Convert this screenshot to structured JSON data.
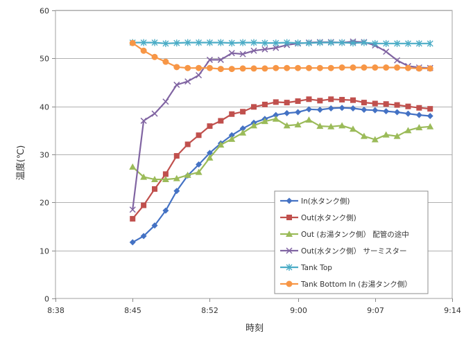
{
  "chart_data": {
    "type": "line",
    "title": "",
    "xlabel": "時刻",
    "ylabel": "温度(℃)",
    "ylim": [
      0,
      60
    ],
    "yticks": [
      0,
      10,
      20,
      30,
      40,
      50,
      60
    ],
    "xticks": [
      "8:38",
      "8:45",
      "8:52",
      "9:00",
      "9:07",
      "9:14"
    ],
    "xlim": [
      "8:38",
      "9:14"
    ],
    "grid": true,
    "legend": "inside-bottom-right",
    "x": [
      "8:45",
      "8:46",
      "8:47",
      "8:48",
      "8:49",
      "8:50",
      "8:51",
      "8:52",
      "8:53",
      "8:54",
      "8:55",
      "8:56",
      "8:57",
      "8:58",
      "8:59",
      "9:00",
      "9:01",
      "9:02",
      "9:03",
      "9:04",
      "9:05",
      "9:06",
      "9:07",
      "9:08",
      "9:09",
      "9:10",
      "9:11",
      "9:12"
    ],
    "series": [
      {
        "name": "In(水タンク側)",
        "color": "#4472C4",
        "marker": "diamond",
        "values": [
          11.7,
          13.0,
          15.2,
          18.3,
          22.4,
          25.6,
          27.9,
          30.3,
          32.3,
          34.0,
          35.4,
          36.6,
          37.4,
          38.2,
          38.6,
          38.8,
          39.4,
          39.3,
          39.6,
          39.7,
          39.6,
          39.3,
          39.2,
          39.0,
          38.8,
          38.5,
          38.2,
          38.0
        ]
      },
      {
        "name": "Out(水タンク側)",
        "color": "#C0504D",
        "marker": "square",
        "values": [
          16.6,
          19.4,
          22.8,
          25.9,
          29.7,
          32.1,
          34.0,
          35.9,
          37.0,
          38.4,
          38.9,
          39.9,
          40.4,
          40.9,
          40.8,
          41.1,
          41.5,
          41.2,
          41.5,
          41.4,
          41.3,
          40.8,
          40.6,
          40.5,
          40.3,
          40.0,
          39.7,
          39.5
        ]
      },
      {
        "name": "Out (お湯タンク側） 配管の途中",
        "color": "#9BBB59",
        "marker": "triangle",
        "values": [
          27.4,
          25.3,
          24.8,
          24.8,
          25.0,
          25.7,
          26.3,
          29.3,
          32.0,
          33.2,
          34.5,
          36.0,
          36.9,
          37.4,
          36.0,
          36.2,
          37.2,
          35.9,
          35.8,
          36.0,
          35.3,
          33.8,
          33.1,
          34.1,
          33.8,
          35.0,
          35.6,
          35.8
        ]
      },
      {
        "name": "Out(水タンク側） サーミスター",
        "color": "#8064A2",
        "marker": "x",
        "values": [
          18.5,
          37.0,
          38.5,
          41.0,
          44.5,
          45.2,
          46.5,
          49.7,
          49.7,
          51.1,
          50.9,
          51.6,
          51.9,
          52.2,
          52.8,
          53.1,
          53.3,
          53.4,
          53.4,
          53.3,
          53.5,
          53.4,
          52.7,
          51.4,
          49.6,
          48.4,
          48.1,
          48.0
        ]
      },
      {
        "name": "Tank Top",
        "color": "#4BACC6",
        "marker": "star",
        "values": [
          53.3,
          53.3,
          53.3,
          53.1,
          53.2,
          53.3,
          53.3,
          53.3,
          53.3,
          53.2,
          53.3,
          53.3,
          53.2,
          53.2,
          53.3,
          53.2,
          53.2,
          53.3,
          53.3,
          53.3,
          53.2,
          53.3,
          53.1,
          53.1,
          53.1,
          53.1,
          53.1,
          53.1
        ]
      },
      {
        "name": "Tank Bottom  In (お湯タンク側）",
        "color": "#F79646",
        "marker": "circle",
        "values": [
          53.2,
          51.6,
          50.3,
          49.3,
          48.2,
          48.0,
          48.0,
          48.0,
          47.8,
          47.8,
          47.9,
          47.9,
          47.9,
          48.0,
          48.0,
          48.0,
          48.0,
          48.0,
          48.0,
          48.1,
          48.1,
          48.1,
          48.1,
          48.1,
          48.1,
          48.0,
          47.9,
          47.9
        ]
      }
    ]
  }
}
